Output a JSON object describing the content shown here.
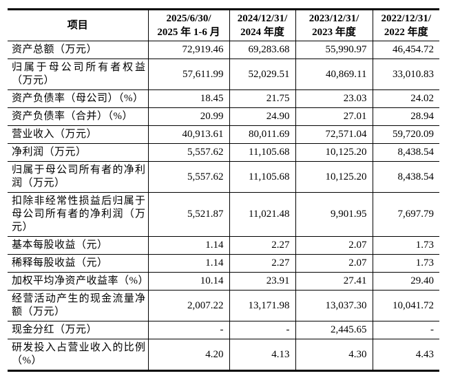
{
  "table": {
    "header": {
      "item_col": "项目",
      "period_cols": [
        {
          "line1": "2025/6/30/",
          "line2": "2025 年 1-6 月"
        },
        {
          "line1": "2024/12/31/",
          "line2": "2024 年度"
        },
        {
          "line1": "2023/12/31/",
          "line2": "2023 年度"
        },
        {
          "line1": "2022/12/31/",
          "line2": "2022 年度"
        }
      ]
    },
    "rows": [
      {
        "item": "资产总额（万元）",
        "values": [
          "72,919.46",
          "69,283.68",
          "55,990.97",
          "46,454.72"
        ]
      },
      {
        "item": "归属于母公司所有者权益（万元）",
        "values": [
          "57,611.99",
          "52,029.51",
          "40,869.11",
          "33,010.83"
        ]
      },
      {
        "item": "资产负债率（母公司）（%）",
        "values": [
          "18.45",
          "21.75",
          "23.03",
          "24.02"
        ]
      },
      {
        "item": "资产负债率（合并）（%）",
        "values": [
          "20.99",
          "24.90",
          "27.01",
          "28.94"
        ]
      },
      {
        "item": "营业收入（万元）",
        "values": [
          "40,913.61",
          "80,011.69",
          "72,571.04",
          "59,720.09"
        ]
      },
      {
        "item": "净利润（万元）",
        "values": [
          "5,557.62",
          "11,105.68",
          "10,125.20",
          "8,438.54"
        ]
      },
      {
        "item": "归属于母公司所有者的净利润（万元）",
        "values": [
          "5,557.62",
          "11,105.68",
          "10,125.20",
          "8,438.54"
        ]
      },
      {
        "item": "扣除非经常性损益后归属于母公司所有者的净利润（万元）",
        "values": [
          "5,521.87",
          "11,021.48",
          "9,901.95",
          "7,697.79"
        ]
      },
      {
        "item": "基本每股收益（元）",
        "values": [
          "1.14",
          "2.27",
          "2.07",
          "1.73"
        ]
      },
      {
        "item": "稀释每股收益（元）",
        "values": [
          "1.14",
          "2.27",
          "2.07",
          "1.73"
        ]
      },
      {
        "item": "加权平均净资产收益率（%）",
        "values": [
          "10.14",
          "23.91",
          "27.41",
          "29.40"
        ]
      },
      {
        "item": "经营活动产生的现金流量净额（万元）",
        "values": [
          "2,007.22",
          "13,171.98",
          "13,037.30",
          "10,041.72"
        ]
      },
      {
        "item": "现金分红（万元）",
        "values": [
          "-",
          "-",
          "2,445.65",
          "-"
        ]
      },
      {
        "item": "研发投入占营业收入的比例（%）",
        "values": [
          "4.20",
          "4.13",
          "4.30",
          "4.43"
        ]
      }
    ]
  }
}
